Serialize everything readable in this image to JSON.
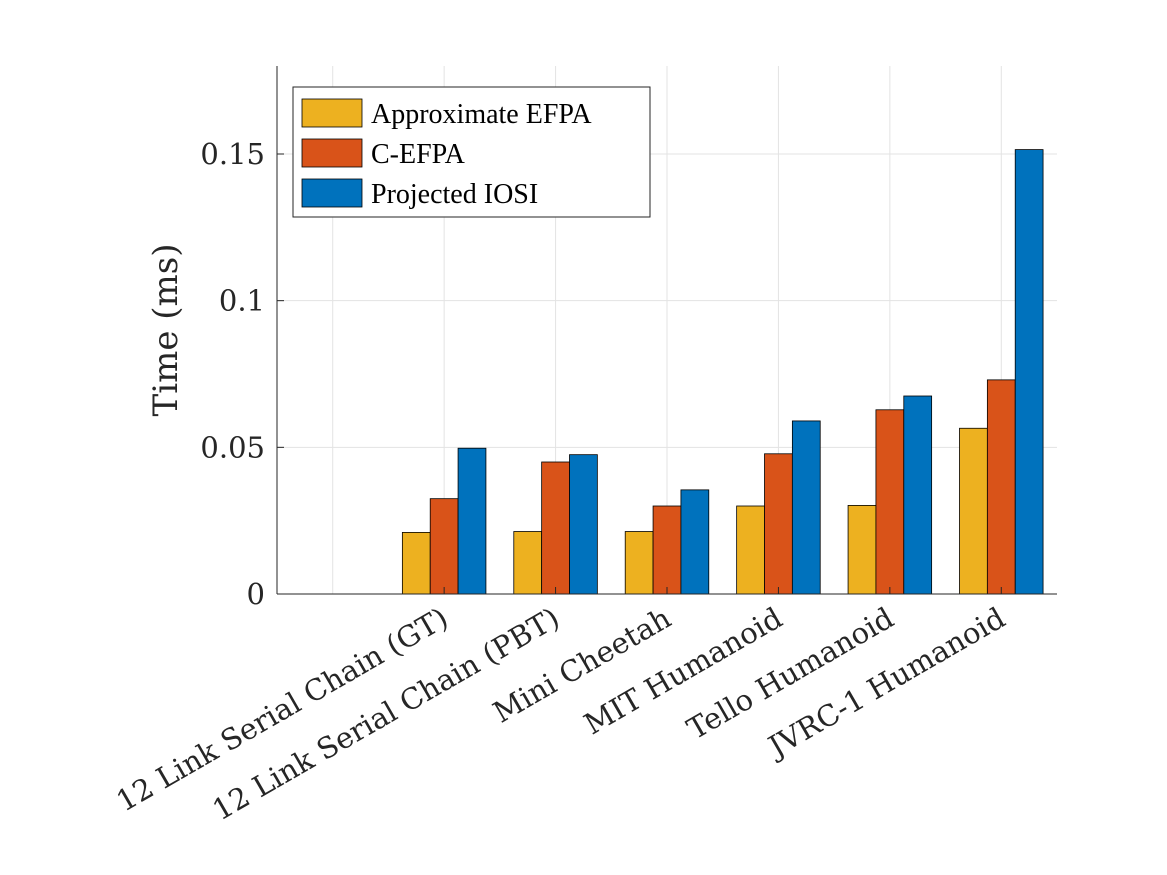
{
  "chart_data": {
    "type": "bar",
    "title": "",
    "xlabel": "",
    "ylabel": "Time (ms)",
    "ylim": [
      0,
      0.18
    ],
    "yticks": [
      0,
      0.05,
      0.1,
      0.15
    ],
    "ytick_labels": [
      "0",
      "0.05",
      "0.1",
      "0.15"
    ],
    "xlim": [
      0.5,
      7.5
    ],
    "grid": true,
    "legend_position": "top-left",
    "categories": [
      "12 Link Serial Chain (GT)",
      "12 Link Serial Chain (PBT)",
      "Mini Cheetah",
      "MIT Humanoid",
      "Tello Humanoid",
      "JVRC-1 Humanoid"
    ],
    "series": [
      {
        "name": "Approximate EFPA",
        "color": "#EDB120",
        "values": [
          0.021,
          0.0213,
          0.0213,
          0.03,
          0.0302,
          0.0565
        ]
      },
      {
        "name": "C-EFPA",
        "color": "#D95319",
        "values": [
          0.0325,
          0.045,
          0.03,
          0.0478,
          0.0628,
          0.073
        ]
      },
      {
        "name": "Projected IOSI",
        "color": "#0072BD",
        "values": [
          0.0497,
          0.0475,
          0.0355,
          0.059,
          0.0675,
          0.1515
        ]
      }
    ]
  }
}
